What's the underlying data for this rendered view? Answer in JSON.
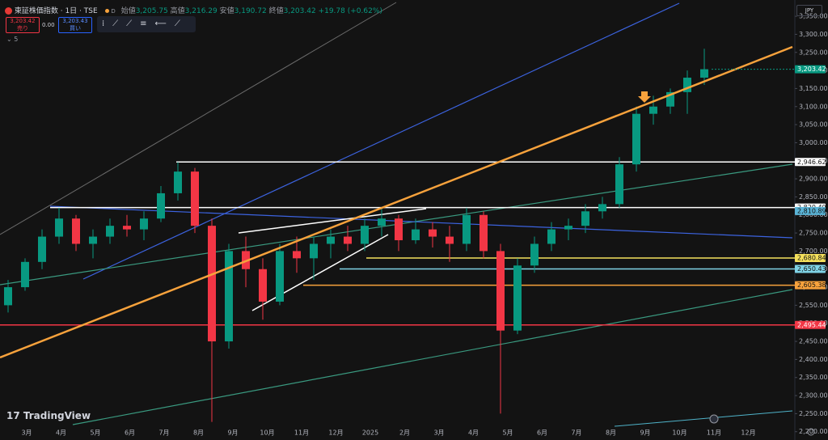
{
  "header": {
    "symbol": "東証株価指数 · 1日 · TSE",
    "interval_badge": "D",
    "open_label": "始値",
    "open": "3,205.75",
    "high_label": "高値",
    "high": "3,216.29",
    "low_label": "安値",
    "low": "3,190.72",
    "close_label": "終値",
    "close": "3,203.42",
    "change": "+19.78 (+0.62%)",
    "sell_price": "3,203.42",
    "sell_label": "売り",
    "spread": "0.00",
    "buy_price": "3,203.43",
    "buy_label": "買い",
    "indicator_count": "5",
    "currency": "JPY",
    "brand": "TradingView"
  },
  "chart_data": {
    "type": "candlestick",
    "up_color": "#089981",
    "down_color": "#f23645",
    "x_labels": [
      "3月",
      "4月",
      "5月",
      "6月",
      "7月",
      "8月",
      "9月",
      "10月",
      "11月",
      "12月",
      "2025",
      "2月",
      "3月",
      "4月",
      "5月",
      "6月",
      "7月",
      "8月",
      "9月",
      "10月",
      "11月",
      "12月"
    ],
    "candles": [
      [
        2550,
        2620,
        2530,
        2600
      ],
      [
        2600,
        2680,
        2590,
        2670
      ],
      [
        2670,
        2760,
        2650,
        2740
      ],
      [
        2740,
        2820,
        2720,
        2790
      ],
      [
        2790,
        2800,
        2700,
        2720
      ],
      [
        2720,
        2760,
        2680,
        2740
      ],
      [
        2740,
        2790,
        2720,
        2770
      ],
      [
        2770,
        2800,
        2740,
        2760
      ],
      [
        2760,
        2810,
        2730,
        2790
      ],
      [
        2790,
        2880,
        2780,
        2860
      ],
      [
        2860,
        2946,
        2840,
        2920
      ],
      [
        2920,
        2930,
        2750,
        2770
      ],
      [
        2770,
        2790,
        2227,
        2450
      ],
      [
        2450,
        2720,
        2430,
        2700
      ],
      [
        2700,
        2740,
        2600,
        2650
      ],
      [
        2650,
        2680,
        2510,
        2560
      ],
      [
        2560,
        2720,
        2550,
        2700
      ],
      [
        2700,
        2740,
        2640,
        2680
      ],
      [
        2680,
        2740,
        2620,
        2720
      ],
      [
        2720,
        2760,
        2680,
        2740
      ],
      [
        2740,
        2770,
        2700,
        2720
      ],
      [
        2720,
        2790,
        2700,
        2770
      ],
      [
        2770,
        2820,
        2740,
        2790
      ],
      [
        2790,
        2800,
        2700,
        2730
      ],
      [
        2730,
        2790,
        2720,
        2760
      ],
      [
        2760,
        2780,
        2710,
        2740
      ],
      [
        2740,
        2770,
        2670,
        2720
      ],
      [
        2720,
        2820,
        2700,
        2800
      ],
      [
        2800,
        2810,
        2680,
        2700
      ],
      [
        2700,
        2720,
        2250,
        2480
      ],
      [
        2480,
        2680,
        2470,
        2660
      ],
      [
        2660,
        2740,
        2640,
        2720
      ],
      [
        2720,
        2780,
        2700,
        2760
      ],
      [
        2760,
        2790,
        2730,
        2770
      ],
      [
        2770,
        2830,
        2750,
        2810
      ],
      [
        2810,
        2850,
        2790,
        2830
      ],
      [
        2830,
        2960,
        2820,
        2940
      ],
      [
        2940,
        3100,
        2920,
        3080
      ],
      [
        3080,
        3130,
        3050,
        3100
      ],
      [
        3100,
        3150,
        3080,
        3140
      ],
      [
        3140,
        3200,
        3080,
        3180
      ],
      [
        3180,
        3260,
        3160,
        3203.42
      ]
    ],
    "ylim": [
      2177,
      3395
    ],
    "yticks": [
      {
        "value": 2200,
        "label": "2,200.00"
      },
      {
        "value": 2250,
        "label": "2,250.00"
      },
      {
        "value": 2300,
        "label": "2,300.00"
      },
      {
        "value": 2350,
        "label": "2,350.00"
      },
      {
        "value": 2400,
        "label": "2,400.00"
      },
      {
        "value": 2450,
        "label": "2,450.00"
      },
      {
        "value": 2500,
        "label": "2,500.00"
      },
      {
        "value": 2550,
        "label": "2,550.00"
      },
      {
        "value": 2600,
        "label": "2,600.00"
      },
      {
        "value": 2650,
        "label": "2,650.00"
      },
      {
        "value": 2700,
        "label": "2,700.00"
      },
      {
        "value": 2750,
        "label": "2,750.00"
      },
      {
        "value": 2800,
        "label": "2,800.00"
      },
      {
        "value": 2850,
        "label": "2,850.00"
      },
      {
        "value": 2900,
        "label": "2,900.00"
      },
      {
        "value": 2950,
        "label": "2,950.00"
      },
      {
        "value": 3000,
        "label": "3,000.00"
      },
      {
        "value": 3050,
        "label": "3,050.00"
      },
      {
        "value": 3100,
        "label": "3,100.00"
      },
      {
        "value": 3150,
        "label": "3,150.00"
      },
      {
        "value": 3200,
        "label": "3,200.00"
      },
      {
        "value": 3250,
        "label": "3,250.00"
      },
      {
        "value": 3300,
        "label": "3,300.00"
      },
      {
        "value": 3350,
        "label": "3,350.00"
      }
    ],
    "levels": [
      {
        "value": 2946.62,
        "label": "2,946.62",
        "color": "#ffffff"
      },
      {
        "value": 2820.4,
        "label": "2,820.40",
        "color": "#ffffff"
      },
      {
        "value": 2810.89,
        "label": "2,810.89",
        "color": "#5ab4d6"
      },
      {
        "value": 2680.84,
        "label": "2,680.84",
        "color": "#f5e15c"
      },
      {
        "value": 2650.43,
        "label": "2,650.43",
        "color": "#7fd3e6"
      },
      {
        "value": 2605.38,
        "label": "2,605.38",
        "color": "#f7a23c"
      },
      {
        "value": 2495.44,
        "label": "2,495.44",
        "color": "#f23645"
      }
    ],
    "last_price": {
      "value": 3203.42,
      "label": "3,203.42",
      "color": "#089981"
    }
  }
}
